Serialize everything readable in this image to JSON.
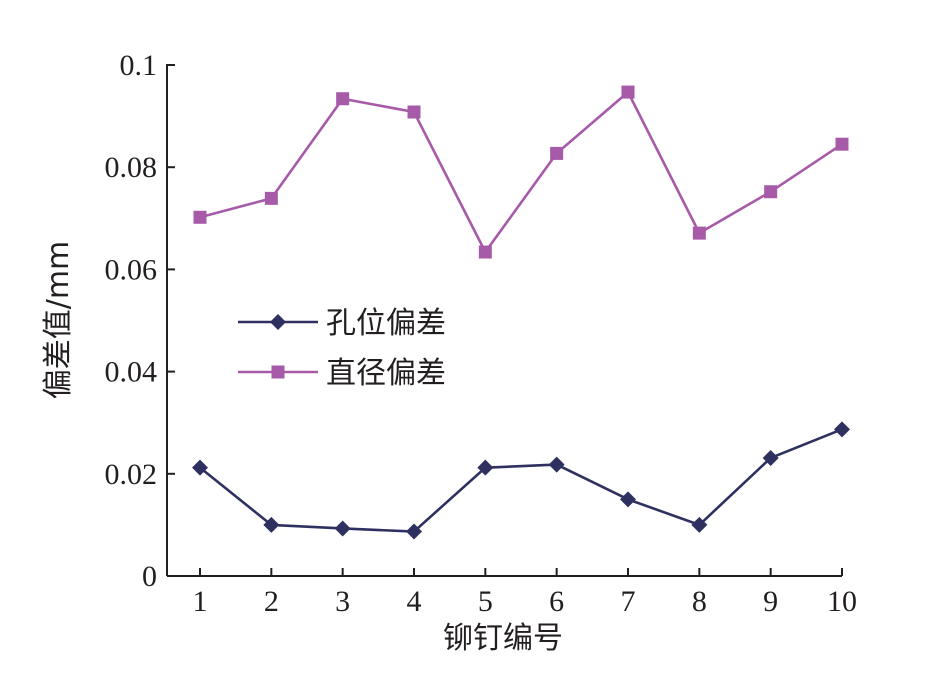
{
  "chart_data": {
    "type": "line",
    "categories": [
      "1",
      "2",
      "3",
      "4",
      "5",
      "6",
      "7",
      "8",
      "9",
      "10"
    ],
    "series": [
      {
        "name": "孔位偏差",
        "color": "#2e3160",
        "marker": "diamond",
        "values": [
          0.0212,
          0.01,
          0.0093,
          0.0087,
          0.0212,
          0.0218,
          0.015,
          0.01,
          0.0231,
          0.0287
        ]
      },
      {
        "name": "直径偏差",
        "color": "#a65aa8",
        "marker": "square",
        "values": [
          0.0702,
          0.0739,
          0.0934,
          0.0908,
          0.0634,
          0.0827,
          0.0947,
          0.0671,
          0.0752,
          0.0845
        ]
      }
    ],
    "xlabel": "铆钉编号",
    "ylabel": "偏差值/mm",
    "ylim": [
      0,
      0.1
    ],
    "yticks": [
      "0",
      "0.02",
      "0.04",
      "0.06",
      "0.08",
      "0.1"
    ],
    "grid": false,
    "legend_position": "center-left"
  }
}
